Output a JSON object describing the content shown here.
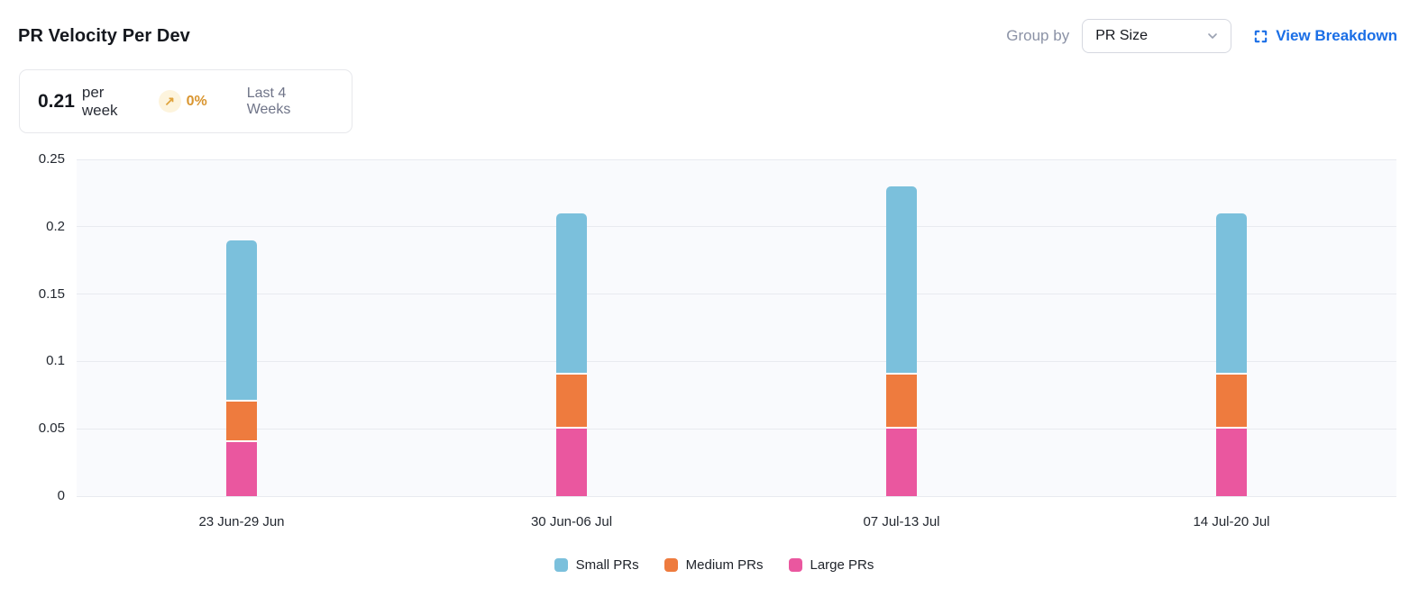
{
  "header": {
    "title": "PR Velocity Per Dev",
    "group_by_label": "Group by",
    "group_by_value": "PR Size",
    "view_breakdown_label": "View Breakdown"
  },
  "stat": {
    "value": "0.21",
    "unit": "per week",
    "trend_arrow": "↗",
    "trend_percent": "0%",
    "period": "Last 4 Weeks"
  },
  "colors": {
    "small_prs": "#7bc0dc",
    "medium_prs": "#ee7b3e",
    "large_prs": "#ea579f",
    "link_blue": "#1a6ee6",
    "trend_amber": "#d9952f",
    "trend_badge_bg": "#fdf4dd",
    "plot_bg": "#f9fafd",
    "gridline": "#e8eaf0"
  },
  "chart_data": {
    "type": "bar",
    "stacked": true,
    "title": "PR Velocity Per Dev",
    "categories": [
      "23 Jun-29 Jun",
      "30 Jun-06 Jul",
      "07 Jul-13 Jul",
      "14 Jul-20 Jul"
    ],
    "series": [
      {
        "name": "Small PRs",
        "color": "#7bc0dc",
        "values": [
          0.12,
          0.12,
          0.14,
          0.12
        ]
      },
      {
        "name": "Medium PRs",
        "color": "#ee7b3e",
        "values": [
          0.03,
          0.04,
          0.04,
          0.04
        ]
      },
      {
        "name": "Large PRs",
        "color": "#ea579f",
        "values": [
          0.04,
          0.05,
          0.05,
          0.05
        ]
      }
    ],
    "stack_order_bottom_to_top": [
      "Large PRs",
      "Medium PRs",
      "Small PRs"
    ],
    "totals": [
      0.19,
      0.21,
      0.23,
      0.21
    ],
    "xlabel": "",
    "ylabel": "",
    "ylim": [
      0,
      0.25
    ],
    "yticks": [
      0,
      0.05,
      0.1,
      0.15,
      0.2,
      0.25
    ],
    "ytick_labels": [
      "0",
      "0.05",
      "0.1",
      "0.15",
      "0.2",
      "0.25"
    ],
    "grid": true,
    "legend_position": "bottom"
  }
}
